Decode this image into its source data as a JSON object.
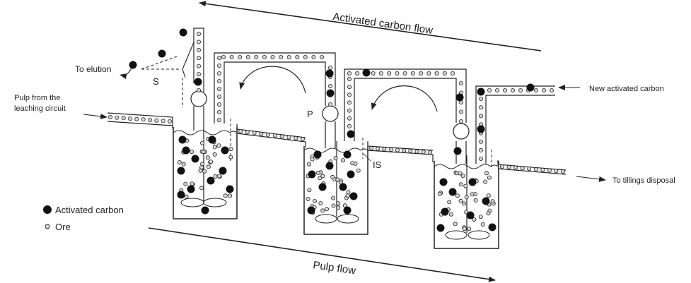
{
  "labels": {
    "activated_carbon_flow": "Activated carbon flow",
    "pulp_flow": "Pulp flow",
    "to_elution": "To elution",
    "screen": "S",
    "pump": "P",
    "interstage_screen": "IS",
    "pulp_from_leaching_line1": "Pulp from the",
    "pulp_from_leaching_line2": "leaching circuit",
    "new_activated_carbon": "New activated carbon",
    "to_tailings": "To tillings disposal"
  },
  "legend": {
    "carbon": "Activated carbon",
    "ore": "Ore"
  },
  "colors": {
    "line": "#222222",
    "carbon": "#111111",
    "ore_fill": "#d8d8d8"
  }
}
